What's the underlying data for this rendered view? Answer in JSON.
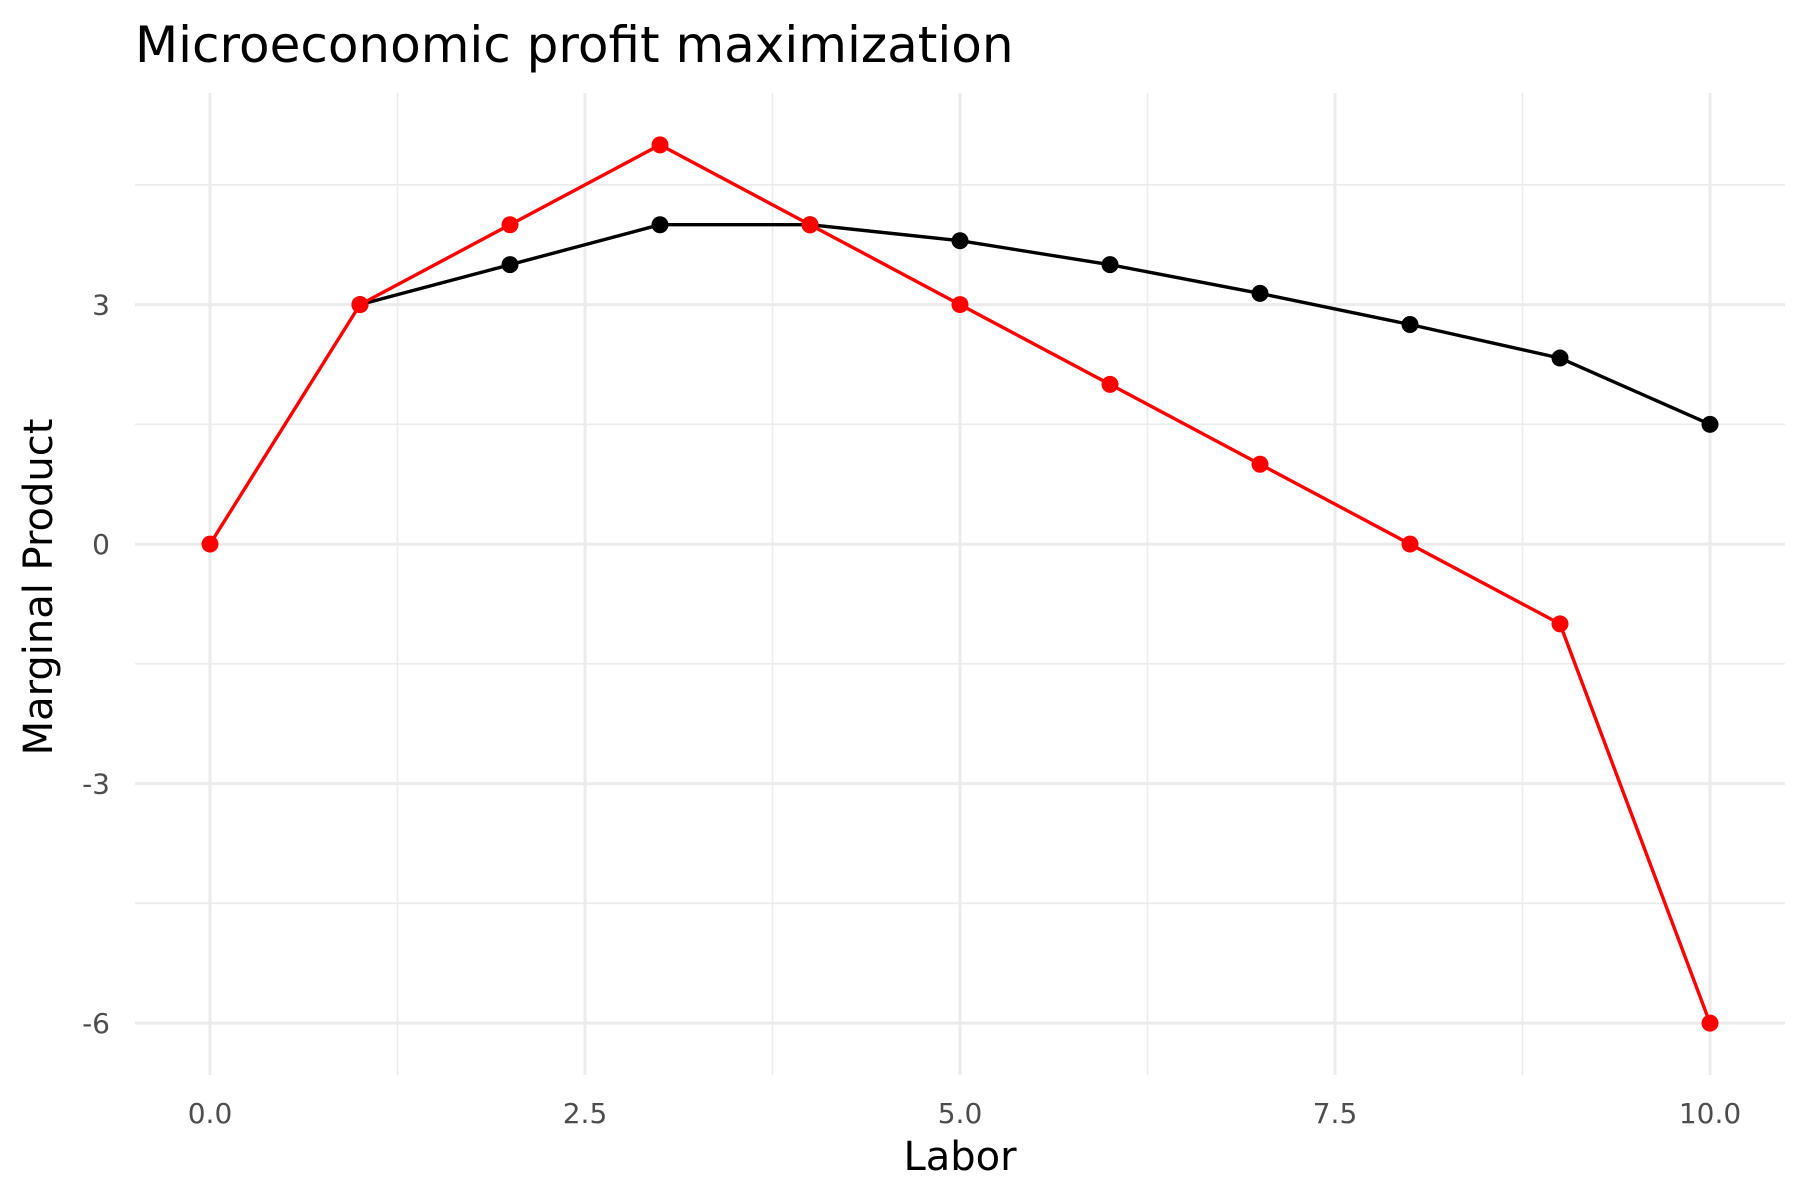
{
  "chart_data": {
    "type": "line",
    "title": "Microeconomic profit maximization",
    "xlabel": "Labor",
    "ylabel": "Marginal Product",
    "x": [
      0,
      1,
      2,
      3,
      4,
      5,
      6,
      7,
      8,
      9,
      10
    ],
    "xlim": [
      -0.5,
      10.5
    ],
    "ylim": [
      -6.65,
      5.65
    ],
    "x_ticks": [
      0,
      2.5,
      5,
      7.5,
      10
    ],
    "x_tick_labels": [
      "0.0",
      "2.5",
      "5.0",
      "7.5",
      "10.0"
    ],
    "y_ticks": [
      -6,
      -3,
      0,
      3
    ],
    "y_tick_labels": [
      "-6",
      "-3",
      "0",
      "3"
    ],
    "x_minor": [
      1.25,
      3.75,
      6.25,
      8.75
    ],
    "y_minor": [
      -4.5,
      -1.5,
      1.5,
      4.5
    ],
    "grid": true,
    "legend": "none",
    "series": [
      {
        "color": "#000000",
        "x": [
          1,
          2,
          3,
          4,
          5,
          6,
          7,
          8,
          9,
          10
        ],
        "values": [
          3,
          3.5,
          4,
          4,
          3.8,
          3.5,
          3.14,
          2.75,
          2.33,
          1.5
        ]
      },
      {
        "color": "#ff0000",
        "x": [
          0,
          1,
          2,
          3,
          4,
          5,
          6,
          7,
          8,
          9,
          10
        ],
        "values": [
          0,
          3,
          4,
          5,
          4,
          3,
          2,
          1,
          0,
          -1,
          -6
        ]
      }
    ]
  }
}
